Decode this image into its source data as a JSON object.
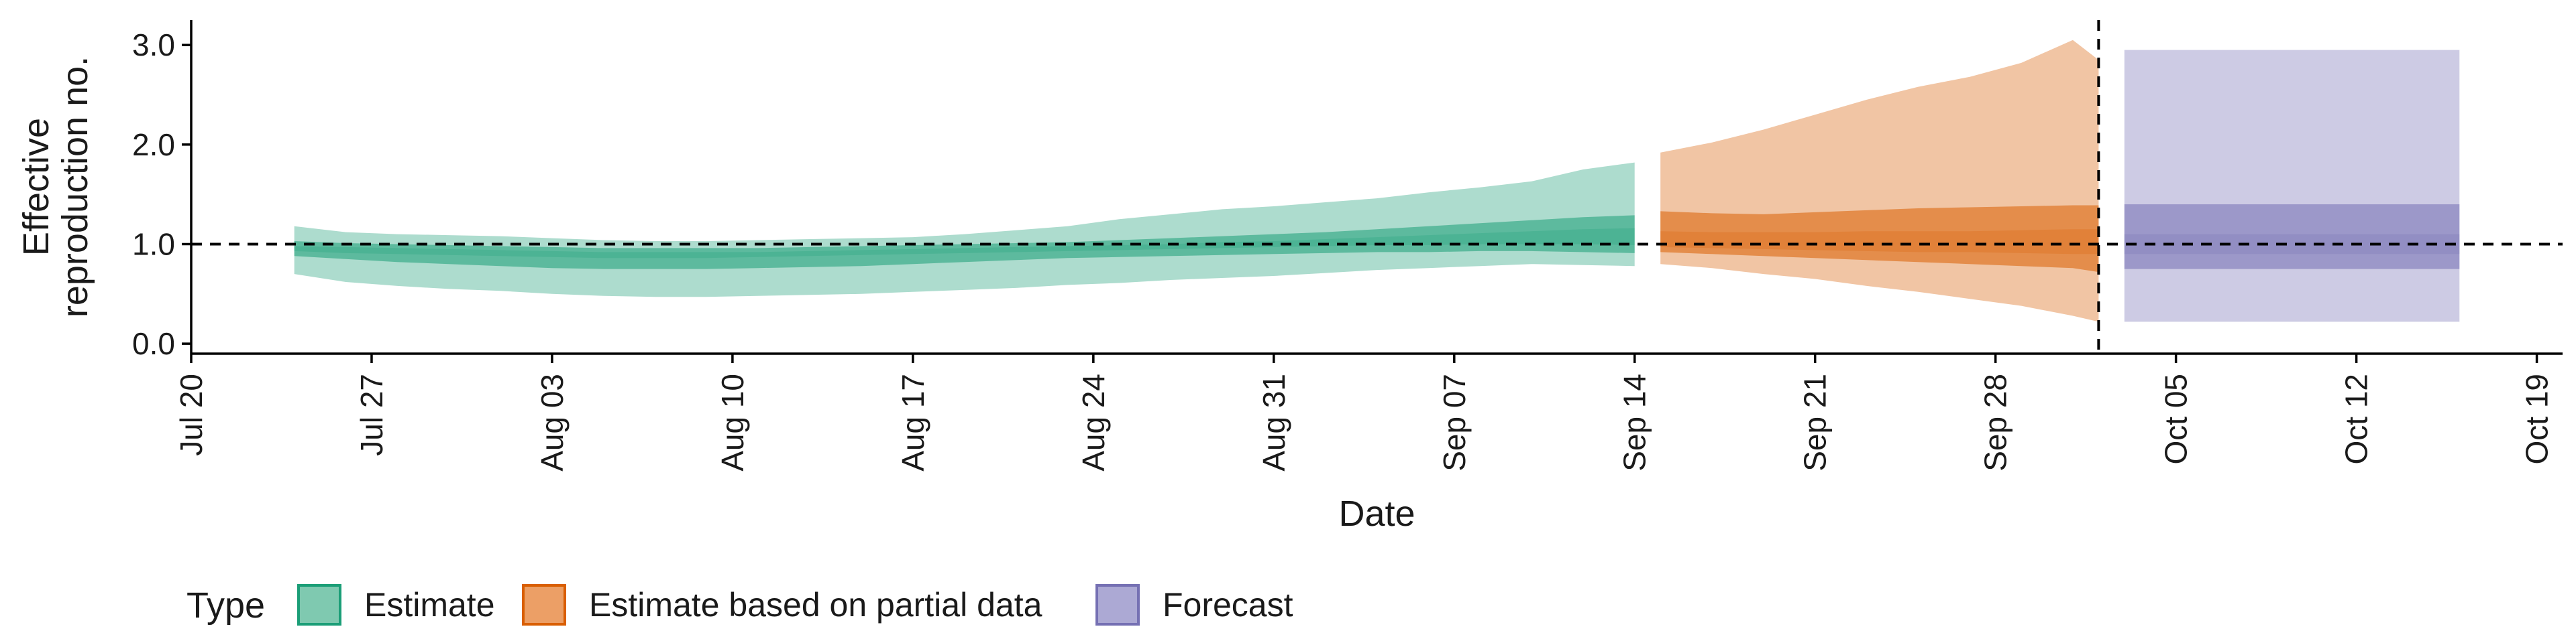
{
  "chart_data": {
    "type": "area",
    "title": "",
    "xlabel": "Date",
    "ylabel": [
      "Effective",
      "reproduction no."
    ],
    "ylim": [
      -0.1,
      3.25
    ],
    "yticks": [
      0.0,
      1.0,
      2.0,
      3.0
    ],
    "ytick_labels": [
      "0.0",
      "1.0",
      "2.0",
      "3.0"
    ],
    "xlim": [
      "2020-07-20",
      "2020-10-20"
    ],
    "xticks": [
      "2020-07-20",
      "2020-07-27",
      "2020-08-03",
      "2020-08-10",
      "2020-08-17",
      "2020-08-24",
      "2020-08-31",
      "2020-09-07",
      "2020-09-14",
      "2020-09-21",
      "2020-09-28",
      "2020-10-05",
      "2020-10-12",
      "2020-10-19"
    ],
    "xtick_labels": [
      "Jul 20",
      "Jul 27",
      "Aug 03",
      "Aug 10",
      "Aug 17",
      "Aug 24",
      "Aug 31",
      "Sep 07",
      "Sep 14",
      "Sep 21",
      "Sep 28",
      "Oct 05",
      "Oct 12",
      "Oct 19"
    ],
    "reference_hline": 1.0,
    "reference_vline": "2020-10-02",
    "grid": false,
    "legend": {
      "title": "Type",
      "position": "bottom-left",
      "entries": [
        "Estimate",
        "Estimate based on partial data",
        "Forecast"
      ]
    },
    "series": [
      {
        "name": "Estimate",
        "color": "#1b9e77",
        "fill": "#7fc9b0",
        "x": [
          "2020-07-24",
          "2020-07-26",
          "2020-07-28",
          "2020-07-30",
          "2020-08-01",
          "2020-08-03",
          "2020-08-05",
          "2020-08-07",
          "2020-08-09",
          "2020-08-11",
          "2020-08-13",
          "2020-08-15",
          "2020-08-17",
          "2020-08-19",
          "2020-08-21",
          "2020-08-23",
          "2020-08-25",
          "2020-08-27",
          "2020-08-29",
          "2020-08-31",
          "2020-09-02",
          "2020-09-04",
          "2020-09-06",
          "2020-09-08",
          "2020-09-10",
          "2020-09-12",
          "2020-09-14"
        ],
        "lower90": [
          0.7,
          0.62,
          0.58,
          0.55,
          0.53,
          0.5,
          0.48,
          0.47,
          0.47,
          0.48,
          0.49,
          0.5,
          0.52,
          0.54,
          0.56,
          0.59,
          0.61,
          0.64,
          0.66,
          0.68,
          0.71,
          0.74,
          0.76,
          0.78,
          0.8,
          0.79,
          0.78
        ],
        "upper90": [
          1.18,
          1.12,
          1.1,
          1.09,
          1.08,
          1.06,
          1.04,
          1.03,
          1.03,
          1.04,
          1.05,
          1.06,
          1.07,
          1.1,
          1.14,
          1.18,
          1.25,
          1.3,
          1.35,
          1.38,
          1.42,
          1.46,
          1.52,
          1.57,
          1.63,
          1.75,
          1.82
        ],
        "lower50": [
          0.88,
          0.85,
          0.82,
          0.8,
          0.78,
          0.76,
          0.75,
          0.75,
          0.75,
          0.76,
          0.77,
          0.78,
          0.8,
          0.82,
          0.84,
          0.86,
          0.87,
          0.88,
          0.89,
          0.9,
          0.91,
          0.92,
          0.92,
          0.93,
          0.93,
          0.92,
          0.91
        ],
        "upper50": [
          1.03,
          1.01,
          1.0,
          0.99,
          0.98,
          0.97,
          0.96,
          0.96,
          0.96,
          0.96,
          0.97,
          0.98,
          0.99,
          1.0,
          1.01,
          1.02,
          1.04,
          1.06,
          1.08,
          1.1,
          1.12,
          1.15,
          1.18,
          1.21,
          1.24,
          1.27,
          1.29
        ],
        "lower20": [
          0.93,
          0.91,
          0.9,
          0.89,
          0.88,
          0.87,
          0.86,
          0.86,
          0.86,
          0.87,
          0.88,
          0.89,
          0.9,
          0.91,
          0.92,
          0.93,
          0.94,
          0.95,
          0.96,
          0.97,
          0.98,
          0.99,
          0.99,
          1.0,
          1.0,
          1.0,
          0.99
        ],
        "upper20": [
          0.98,
          0.97,
          0.96,
          0.95,
          0.94,
          0.93,
          0.92,
          0.92,
          0.92,
          0.92,
          0.93,
          0.94,
          0.95,
          0.96,
          0.97,
          0.98,
          0.99,
          1.0,
          1.02,
          1.03,
          1.05,
          1.07,
          1.09,
          1.11,
          1.13,
          1.15,
          1.16
        ]
      },
      {
        "name": "Estimate based on partial data",
        "color": "#d95f02",
        "fill": "#ec9f66",
        "x": [
          "2020-09-15",
          "2020-09-17",
          "2020-09-19",
          "2020-09-21",
          "2020-09-23",
          "2020-09-25",
          "2020-09-27",
          "2020-09-29",
          "2020-10-01",
          "2020-10-02"
        ],
        "lower90": [
          0.8,
          0.76,
          0.7,
          0.65,
          0.58,
          0.52,
          0.45,
          0.38,
          0.28,
          0.22
        ],
        "upper90": [
          1.92,
          2.02,
          2.15,
          2.3,
          2.45,
          2.58,
          2.68,
          2.82,
          3.05,
          2.85
        ],
        "lower50": [
          0.92,
          0.9,
          0.88,
          0.86,
          0.84,
          0.82,
          0.8,
          0.78,
          0.76,
          0.72
        ],
        "upper50": [
          1.33,
          1.31,
          1.3,
          1.32,
          1.34,
          1.36,
          1.37,
          1.38,
          1.39,
          1.39
        ],
        "lower20": [
          0.97,
          0.96,
          0.95,
          0.94,
          0.93,
          0.92,
          0.92,
          0.91,
          0.9,
          0.9
        ],
        "upper20": [
          1.13,
          1.12,
          1.12,
          1.12,
          1.13,
          1.13,
          1.13,
          1.14,
          1.15,
          1.15
        ]
      },
      {
        "name": "Forecast",
        "color": "#7570b3",
        "fill": "#aca9d4",
        "x": [
          "2020-10-03",
          "2020-10-16"
        ],
        "lower90": [
          0.22,
          0.22
        ],
        "upper90": [
          2.95,
          2.95
        ],
        "lower50": [
          0.75,
          0.75
        ],
        "upper50": [
          1.4,
          1.4
        ],
        "lower20": [
          0.9,
          0.9
        ],
        "upper20": [
          1.1,
          1.1
        ]
      }
    ]
  }
}
